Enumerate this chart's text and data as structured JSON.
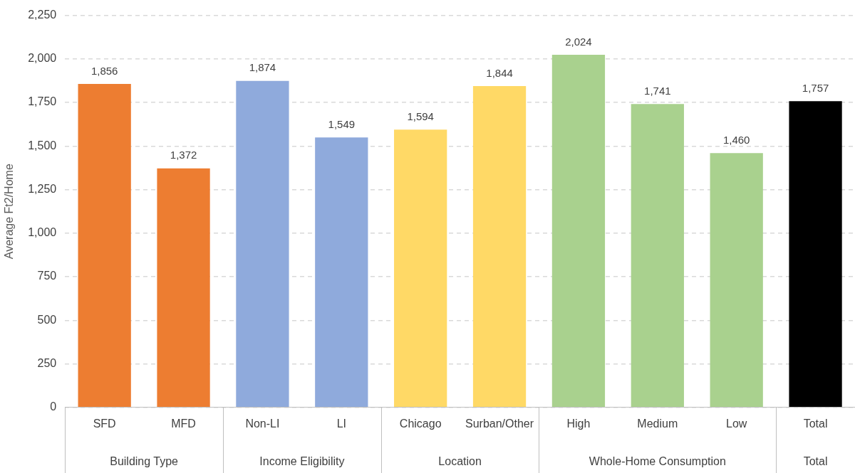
{
  "chart_data": {
    "type": "bar",
    "ylabel": "Average Ft2/Home",
    "categories": [
      "SFD",
      "MFD",
      "Non-LI",
      "LI",
      "Chicago",
      "Surban/Other",
      "High",
      "Medium",
      "Low",
      "Total"
    ],
    "values": [
      1856,
      1372,
      1874,
      1549,
      1594,
      1844,
      2024,
      1741,
      1460,
      1757
    ],
    "colors": [
      "#ed7d31",
      "#ed7d31",
      "#8faadc",
      "#8faadc",
      "#ffd966",
      "#ffd966",
      "#a9d18e",
      "#a9d18e",
      "#a9d18e",
      "#000000"
    ],
    "annotations": [
      "Building Type",
      "Income Eligibility",
      "Location",
      "Whole-Home Consumption",
      "Total"
    ],
    "value_labels": [
      "1,856",
      "1,372",
      "1,874",
      "1,549",
      "1,594",
      "1,844",
      "2,024",
      "1,741",
      "1,460",
      "1,757"
    ],
    "ylim": [
      0,
      2250
    ],
    "yticks": [
      0,
      250,
      500,
      750,
      {
        "value": 1000,
        "label": "1,000"
      },
      {
        "value": 1250,
        "label": "1,250"
      },
      {
        "value": 1500,
        "label": "1,500"
      },
      {
        "value": 1750,
        "label": "1,750"
      },
      {
        "value": 2000,
        "label": "2,000"
      },
      {
        "value": 2250,
        "label": "2,250"
      }
    ],
    "grid": "y",
    "legend": false
  }
}
